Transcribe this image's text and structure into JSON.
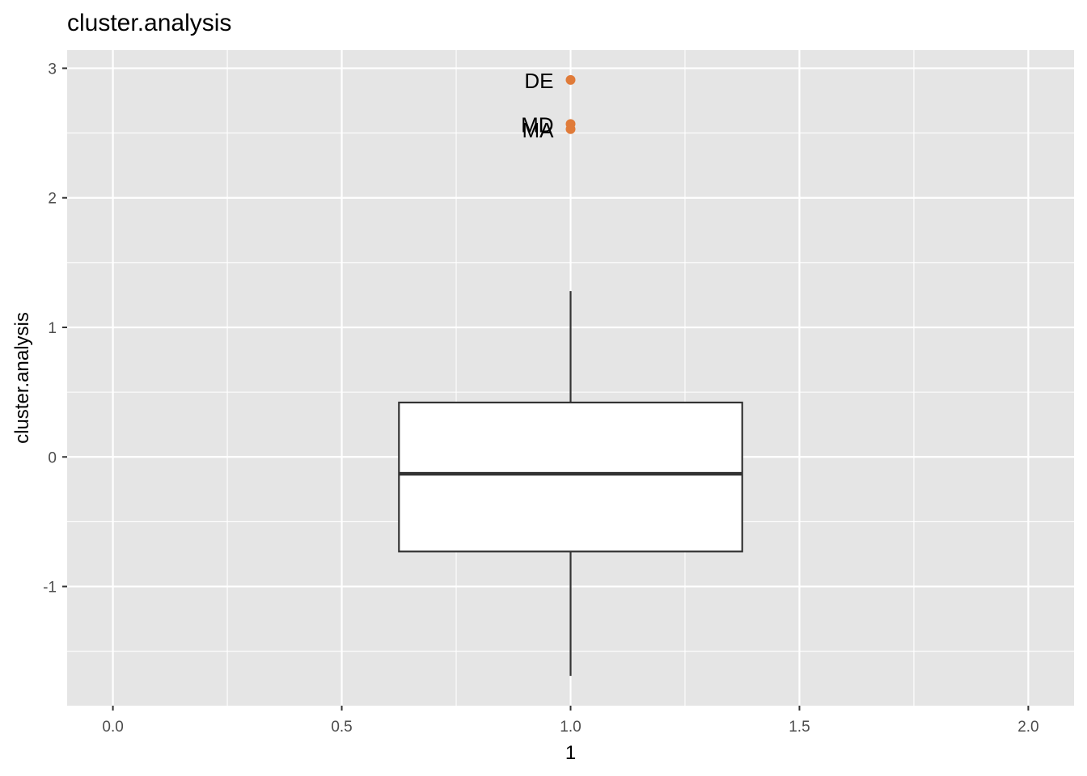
{
  "chart_data": {
    "type": "box",
    "title": "cluster.analysis",
    "xlabel": "1",
    "ylabel": "cluster.analysis",
    "x_ticks": [
      {
        "value": 0,
        "label": "0.0"
      },
      {
        "value": 0.5,
        "label": "0.5"
      },
      {
        "value": 1,
        "label": "1.0"
      },
      {
        "value": 1.5,
        "label": "1.5"
      },
      {
        "value": 2,
        "label": "2.0"
      }
    ],
    "y_ticks": [
      {
        "value": -1,
        "label": "-1"
      },
      {
        "value": 0,
        "label": "0"
      },
      {
        "value": 1,
        "label": "1"
      },
      {
        "value": 2,
        "label": "2"
      },
      {
        "value": 3,
        "label": "3"
      }
    ],
    "xlim": [
      -0.1,
      2.1
    ],
    "ylim": [
      -1.92,
      3.14
    ],
    "grid": true,
    "legend": "none",
    "box": {
      "x": 1,
      "width": 0.75,
      "whisker_low": -1.69,
      "q1": -0.73,
      "median": -0.13,
      "q3": 0.42,
      "whisker_high": 1.28
    },
    "outliers": [
      {
        "label": "DE",
        "x": 1,
        "y": 2.91
      },
      {
        "label": "MD",
        "x": 1,
        "y": 2.57
      },
      {
        "label": "MA",
        "x": 1,
        "y": 2.53
      }
    ],
    "colors": {
      "panel": "#e5e5e5",
      "grid": "#ffffff",
      "box_fill": "#ffffff",
      "box_line": "#333333",
      "outlier": "#e07b39"
    }
  }
}
